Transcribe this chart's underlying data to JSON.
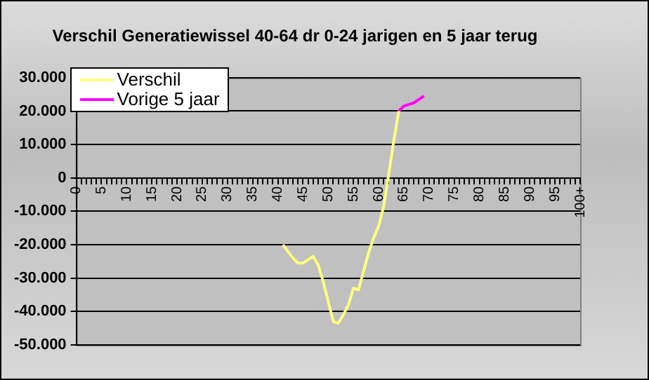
{
  "chart_data": {
    "type": "line",
    "title": "Verschil Generatiewissel 40-64 dr 0-24 jarigen en 5 jaar terug",
    "categories": [
      "0",
      null,
      null,
      null,
      null,
      "5",
      null,
      null,
      null,
      null,
      "10",
      null,
      null,
      null,
      null,
      "15",
      null,
      null,
      null,
      null,
      "20",
      null,
      null,
      null,
      null,
      "25",
      null,
      null,
      null,
      null,
      "30",
      null,
      null,
      null,
      null,
      "35",
      null,
      null,
      null,
      null,
      "40",
      null,
      null,
      null,
      null,
      "45",
      null,
      null,
      null,
      null,
      "50",
      null,
      null,
      null,
      null,
      "55",
      null,
      null,
      null,
      null,
      "60",
      null,
      null,
      null,
      null,
      "65",
      null,
      null,
      null,
      null,
      "70",
      null,
      null,
      null,
      null,
      "75",
      null,
      null,
      null,
      null,
      "80",
      null,
      null,
      null,
      null,
      "85",
      null,
      null,
      null,
      null,
      "90",
      null,
      null,
      null,
      null,
      "95",
      null,
      null,
      null,
      null,
      "100+"
    ],
    "series": [
      {
        "name": "Verschil",
        "color": "#ffff80",
        "values": [
          null,
          null,
          null,
          null,
          null,
          null,
          null,
          null,
          null,
          null,
          null,
          null,
          null,
          null,
          null,
          null,
          null,
          null,
          null,
          null,
          null,
          null,
          null,
          null,
          null,
          null,
          null,
          null,
          null,
          null,
          null,
          null,
          null,
          null,
          null,
          null,
          null,
          null,
          null,
          null,
          null,
          -20000,
          -22000,
          -24000,
          -25500,
          -25500,
          -24500,
          -23500,
          -26000,
          -31000,
          -37000,
          -43000,
          -43500,
          -41000,
          -38000,
          -33000,
          -33500,
          -28000,
          -22500,
          -18000,
          -14500,
          -8500,
          1000,
          11000,
          20000,
          null,
          null,
          null,
          null,
          null,
          null,
          null,
          null,
          null,
          null,
          null,
          null,
          null,
          null,
          null,
          null,
          null,
          null,
          null,
          null,
          null,
          null,
          null,
          null,
          null,
          null,
          null,
          null,
          null,
          null,
          null,
          null,
          null,
          null,
          null,
          null
        ]
      },
      {
        "name": "Vorige 5 jaar",
        "color": "#ff00ff",
        "values": [
          null,
          null,
          null,
          null,
          null,
          null,
          null,
          null,
          null,
          null,
          null,
          null,
          null,
          null,
          null,
          null,
          null,
          null,
          null,
          null,
          null,
          null,
          null,
          null,
          null,
          null,
          null,
          null,
          null,
          null,
          null,
          null,
          null,
          null,
          null,
          null,
          null,
          null,
          null,
          null,
          null,
          null,
          null,
          null,
          null,
          null,
          null,
          null,
          null,
          null,
          null,
          null,
          null,
          null,
          null,
          null,
          null,
          null,
          null,
          null,
          null,
          null,
          null,
          null,
          20000,
          21500,
          22000,
          22500,
          23500,
          24500,
          null,
          null,
          null,
          null,
          null,
          null,
          null,
          null,
          null,
          null,
          null,
          null,
          null,
          null,
          null,
          null,
          null,
          null,
          null,
          null,
          null,
          null,
          null,
          null,
          null,
          null,
          null,
          null,
          null,
          null,
          null
        ]
      }
    ],
    "ylim": [
      -50000,
      30000
    ],
    "yticks": [
      {
        "value": -50000,
        "label": "-50.000"
      },
      {
        "value": -40000,
        "label": "-40.000"
      },
      {
        "value": -30000,
        "label": "-30.000"
      },
      {
        "value": -20000,
        "label": "-20.000"
      },
      {
        "value": -10000,
        "label": "-10.000"
      },
      {
        "value": 0,
        "label": "0"
      },
      {
        "value": 10000,
        "label": "10.000"
      },
      {
        "value": 20000,
        "label": "20.000"
      },
      {
        "value": 30000,
        "label": "30.000"
      }
    ],
    "grid": "y",
    "legend": "top left",
    "marker": "none",
    "line_style": "solid"
  }
}
